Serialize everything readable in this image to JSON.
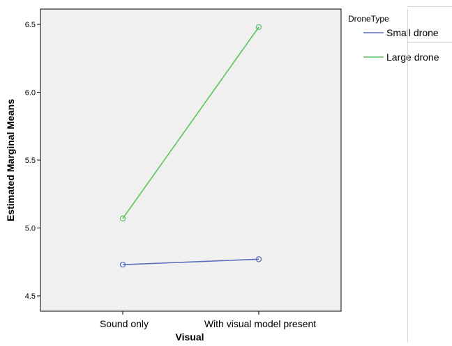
{
  "chart_data": {
    "type": "line",
    "title": "",
    "xlabel": "Visual",
    "ylabel": "Estimated Marginal Means",
    "categories": [
      "Sound only",
      "With visual model present"
    ],
    "ylim": [
      4.45,
      6.6
    ],
    "yticks": [
      "4.5",
      "5.0",
      "5.5",
      "6.0",
      "6.5"
    ],
    "legend_title": "DroneType",
    "legend_position": "right",
    "grid": false,
    "background": "#f0f0f0",
    "series": [
      {
        "name": "Small drone",
        "color": "#5a6fbd",
        "values": [
          4.73,
          4.77
        ]
      },
      {
        "name": "Large drone",
        "color": "#5cc45c",
        "values": [
          5.07,
          6.48
        ]
      }
    ]
  }
}
